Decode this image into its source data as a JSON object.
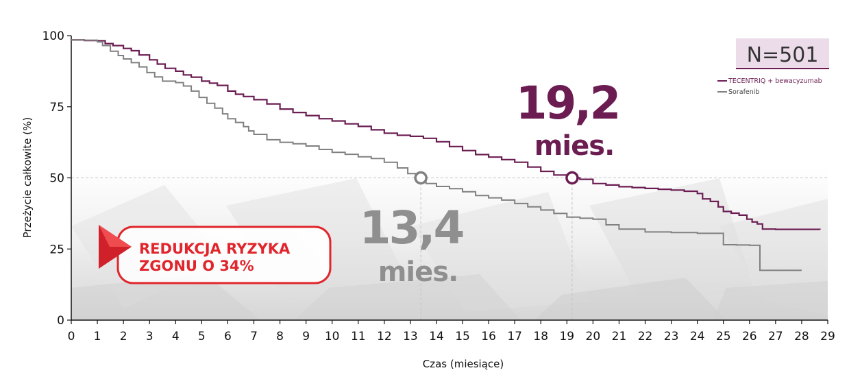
{
  "chart_data": {
    "type": "line",
    "xlabel": "Czas (miesiące)",
    "ylabel": "Przeżycie całkowite (%)",
    "xlim": [
      0,
      29
    ],
    "ylim": [
      0,
      100
    ],
    "xticks": [
      0,
      1,
      2,
      3,
      4,
      5,
      6,
      7,
      8,
      9,
      10,
      11,
      12,
      13,
      14,
      15,
      16,
      17,
      18,
      19,
      20,
      21,
      22,
      23,
      24,
      25,
      26,
      27,
      28,
      29
    ],
    "yticks": [
      0,
      25,
      50,
      75,
      100
    ],
    "reference_line_y": 50,
    "sample_size": "N=501",
    "series": [
      {
        "name": "TECENTRIQ + bewacyzumab",
        "color": "#6b1d52",
        "median_x": 19.2,
        "median_label": "19,2",
        "median_unit": "mies.",
        "x": [
          0,
          0.5,
          1,
          1.3,
          1.6,
          2,
          2.3,
          2.6,
          3,
          3.3,
          3.6,
          4,
          4.3,
          4.6,
          5,
          5.3,
          5.6,
          6,
          6.3,
          6.6,
          7,
          7.5,
          8,
          8.5,
          9,
          9.5,
          10,
          10.5,
          11,
          11.5,
          12,
          12.5,
          13,
          13.5,
          14,
          14.5,
          15,
          15.5,
          16,
          16.5,
          17,
          17.5,
          18,
          18.5,
          19,
          19.5,
          20,
          20.5,
          21,
          21.5,
          22,
          22.5,
          23,
          23.5,
          24,
          24.2,
          24.5,
          24.8,
          25,
          25.3,
          25.6,
          25.9,
          26.1,
          26.3,
          26.5,
          27,
          28.7
        ],
        "y": [
          98.5,
          98.3,
          98.2,
          97.2,
          96.5,
          95.5,
          94.7,
          93.2,
          91.5,
          90.0,
          88.5,
          87.5,
          86.2,
          85.4,
          84.0,
          83.3,
          82.5,
          80.5,
          79.4,
          78.6,
          77.5,
          76.0,
          74.2,
          73.0,
          71.9,
          70.8,
          70.0,
          69.0,
          68.1,
          66.9,
          65.7,
          65.0,
          64.6,
          63.9,
          62.7,
          61.0,
          59.6,
          58.2,
          57.3,
          56.4,
          55.5,
          53.8,
          52.3,
          51.0,
          50.0,
          49.5,
          48.0,
          47.5,
          46.9,
          46.6,
          46.3,
          46.0,
          45.7,
          45.3,
          44.5,
          42.6,
          41.7,
          39.8,
          38.2,
          37.6,
          36.9,
          35.5,
          34.5,
          33.8,
          32.0,
          31.9,
          31.8
        ]
      },
      {
        "name": "Sorafenib",
        "color": "#808080",
        "median_x": 13.4,
        "median_label": "13,4",
        "median_unit": "mies.",
        "x": [
          0,
          0.5,
          1,
          1.2,
          1.5,
          1.8,
          2,
          2.3,
          2.6,
          2.9,
          3.2,
          3.5,
          4,
          4.3,
          4.6,
          4.9,
          5.2,
          5.5,
          5.8,
          6,
          6.3,
          6.6,
          6.8,
          7,
          7.5,
          8,
          8.5,
          9,
          9.5,
          10,
          10.5,
          11,
          11.5,
          12,
          12.5,
          12.9,
          13.2,
          13.6,
          14,
          14.5,
          15,
          15.5,
          16,
          16.5,
          17,
          17.5,
          18,
          18.5,
          19,
          19.5,
          20,
          20.5,
          21,
          22,
          23,
          24,
          25,
          25.5,
          26,
          26.4,
          27,
          28
        ],
        "y": [
          98.5,
          98.4,
          97.8,
          96.5,
          94.5,
          93.0,
          91.8,
          90.5,
          89.0,
          87.0,
          85.5,
          84.0,
          83.5,
          82.3,
          80.5,
          78.3,
          76.2,
          74.5,
          72.5,
          70.8,
          69.5,
          68.0,
          66.5,
          65.3,
          63.4,
          62.5,
          62.0,
          61.2,
          60.0,
          59.0,
          58.3,
          57.4,
          56.8,
          55.5,
          53.5,
          51.5,
          50.0,
          48.0,
          47.0,
          46.2,
          45.1,
          43.8,
          43.0,
          42.2,
          41.0,
          39.8,
          38.7,
          37.5,
          36.2,
          35.8,
          35.5,
          33.5,
          32.0,
          31.0,
          30.8,
          30.5,
          26.5,
          26.4,
          26.3,
          17.5,
          17.5,
          17.5
        ]
      }
    ]
  },
  "callout": {
    "line1": "REDUKCJA RYZYKA",
    "line2": "ZGONU O 34%",
    "color": "#e0262c"
  }
}
